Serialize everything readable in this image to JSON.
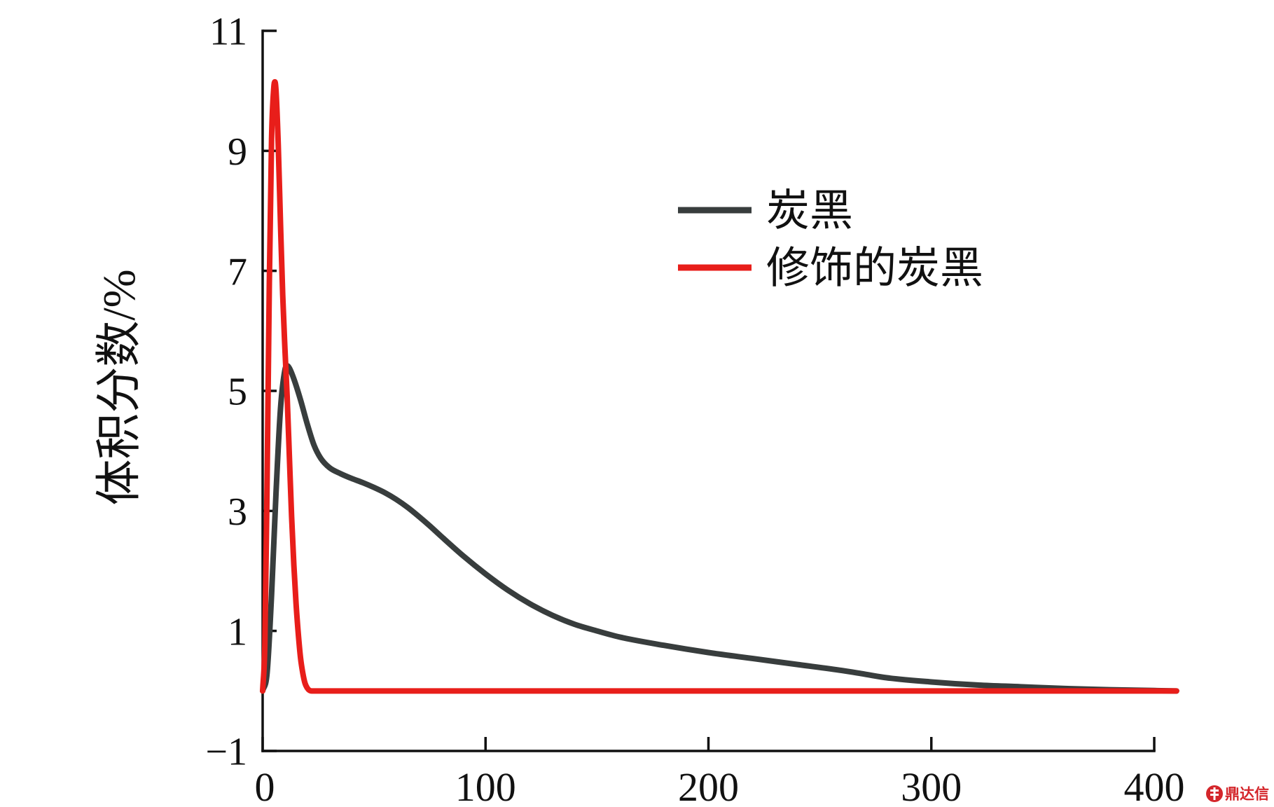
{
  "chart_data": {
    "type": "line",
    "title": "",
    "xlabel": "",
    "ylabel": "体积分数/%",
    "xlim": [
      0,
      400
    ],
    "ylim": [
      -1,
      11
    ],
    "xticks": [
      0,
      100,
      200,
      300,
      400
    ],
    "xtick_labels": [
      "0",
      "100",
      "200",
      "300",
      "400"
    ],
    "yticks": [
      -1,
      1,
      3,
      5,
      7,
      9,
      11
    ],
    "ytick_labels": [
      "−1",
      "1",
      "3",
      "5",
      "7",
      "9",
      "11"
    ],
    "grid": false,
    "legend": {
      "placement": "top-right"
    },
    "series": [
      {
        "name": "炭黑",
        "color": "#383d3d",
        "x": [
          0,
          2,
          4,
          6,
          8,
          10,
          11,
          12,
          14,
          17,
          20,
          23,
          26,
          30,
          35,
          40,
          45,
          50,
          55,
          60,
          65,
          70,
          75,
          80,
          90,
          100,
          110,
          120,
          130,
          140,
          150,
          160,
          180,
          200,
          220,
          240,
          260,
          270,
          280,
          300,
          320,
          340,
          360,
          380,
          410
        ],
        "y": [
          0,
          0.3,
          1.6,
          3.3,
          4.7,
          5.35,
          5.42,
          5.38,
          5.2,
          4.85,
          4.45,
          4.1,
          3.88,
          3.72,
          3.62,
          3.54,
          3.47,
          3.39,
          3.3,
          3.19,
          3.06,
          2.91,
          2.75,
          2.58,
          2.25,
          1.95,
          1.68,
          1.45,
          1.26,
          1.11,
          1.0,
          0.9,
          0.76,
          0.64,
          0.54,
          0.44,
          0.34,
          0.28,
          0.22,
          0.15,
          0.1,
          0.07,
          0.04,
          0.02,
          0.0
        ]
      },
      {
        "name": "修饰的炭黑",
        "color": "#e81e1a",
        "x": [
          0,
          1,
          2,
          3,
          4,
          5,
          5.5,
          6,
          7,
          8,
          9,
          10,
          11,
          12,
          13,
          14,
          15,
          16,
          17,
          18,
          19,
          20,
          21,
          22,
          410
        ],
        "y": [
          0,
          0.8,
          3.5,
          6.8,
          9.2,
          10.05,
          10.15,
          10.0,
          9.1,
          7.8,
          6.6,
          5.7,
          4.9,
          3.9,
          2.9,
          2.1,
          1.45,
          0.95,
          0.55,
          0.3,
          0.13,
          0.05,
          0.01,
          0,
          0
        ]
      }
    ]
  },
  "watermark": {
    "text": "鼎达信",
    "color": "#d4262b"
  }
}
